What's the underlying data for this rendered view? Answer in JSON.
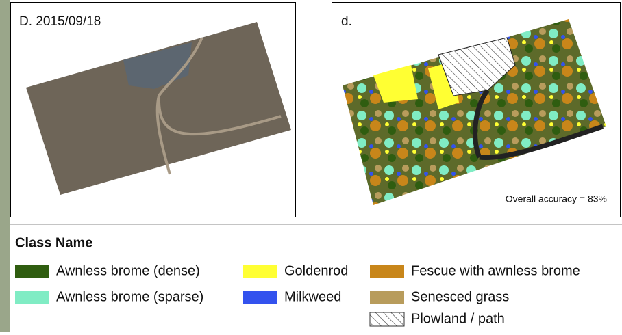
{
  "panels": [
    {
      "label": "D. 2015/09/18"
    },
    {
      "label": "d.",
      "annotation": "Overall accuracy = 83%"
    }
  ],
  "legend": {
    "title": "Class Name",
    "items": [
      {
        "label": "Awnless brome (dense)",
        "color": "#2f5d10"
      },
      {
        "label": "Goldenrod",
        "color": "#ffff33"
      },
      {
        "label": "Fescue with awnless brome",
        "color": "#c8861a"
      },
      {
        "label": "Awnless brome (sparse)",
        "color": "#80ecc4"
      },
      {
        "label": "Milkweed",
        "color": "#3352ee"
      },
      {
        "label": "Senesced grass",
        "color": "#b89c5c"
      },
      {
        "label": "Plowland / path",
        "color": "#ffffff",
        "hatch": true
      }
    ]
  }
}
